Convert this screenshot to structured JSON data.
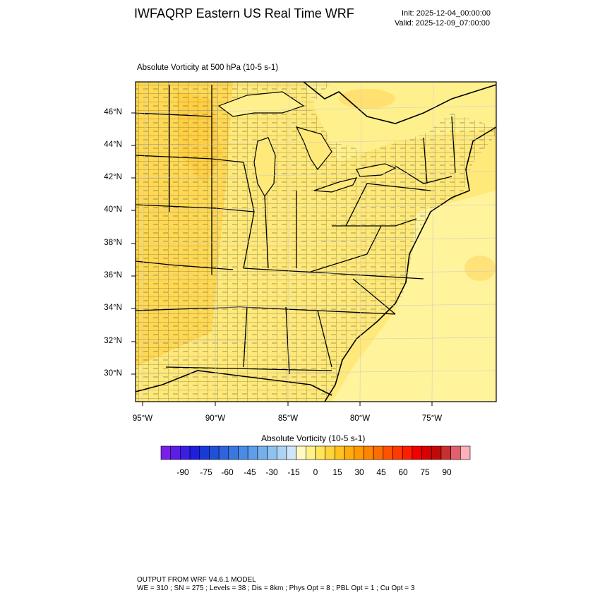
{
  "header": {
    "title": "IWFAQRP Eastern US Real Time WRF",
    "init": "Init: 2025-12-04_00:00:00",
    "valid": "Valid: 2025-12-09_07:00:00"
  },
  "plot": {
    "subtitle": "Absolute Vorticity at 500 hPa   (10-5 s-1)",
    "lat_labels": [
      "46°N",
      "44°N",
      "42°N",
      "40°N",
      "38°N",
      "36°N",
      "34°N",
      "32°N",
      "30°N"
    ],
    "lon_labels": [
      "95°W",
      "90°W",
      "85°W",
      "80°W",
      "75°W"
    ]
  },
  "colorbar": {
    "title": "Absolute Vorticity  (10-5 s-1)",
    "labels": [
      "-90",
      "-75",
      "-60",
      "-45",
      "-30",
      "-15",
      "0",
      "15",
      "30",
      "45",
      "60",
      "75",
      "90"
    ],
    "colors": [
      "#7b1fe8",
      "#5a1ee8",
      "#3c1de6",
      "#1e1ee0",
      "#1a3ad8",
      "#2050d8",
      "#2e64dc",
      "#3a78e0",
      "#4a8ce4",
      "#5e9ee8",
      "#76b0ec",
      "#8ec2f0",
      "#aed4f4",
      "#cfe6f8",
      "#fff9c4",
      "#fff08a",
      "#ffe45c",
      "#ffd43a",
      "#ffc21e",
      "#ffad0a",
      "#ff9a00",
      "#ff8400",
      "#ff6c00",
      "#ff5200",
      "#ff3a00",
      "#ff1e00",
      "#f00000",
      "#d80000",
      "#c00a0a",
      "#c83030",
      "#e06070",
      "#ffb0b8"
    ]
  },
  "footer": {
    "line1": "OUTPUT FROM WRF V4.6.1 MODEL",
    "line2": "WE = 310 ; SN = 275 ; Levels = 38 ; Dis = 8km ; Phys Opt = 8 ; PBL Opt = 1 ; Cu Opt = 3"
  }
}
